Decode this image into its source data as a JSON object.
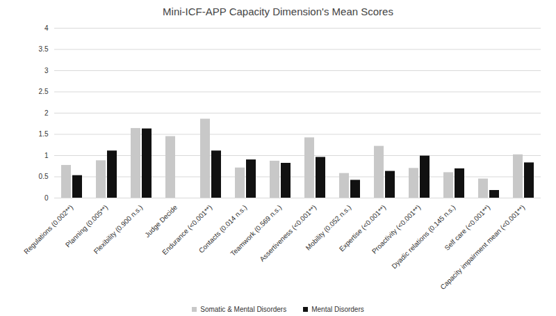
{
  "chart_data": {
    "type": "bar",
    "title": "Mini-ICF-APP Capacity Dimension's Mean Scores",
    "categories": [
      "Regulations (0.002**)",
      "Planning (0.005**)",
      "Flexibility (0.900 n.s.)",
      "Judge Decide",
      "Endurance (<0.001**)",
      "Contacts (0.014 n.s.)",
      "Teamwork (0.569 n.s.)",
      "Assertiveness (<0.001**)",
      "Mobility (0.052 n.s.)",
      "Expertise (<0.001**)",
      "Proactivity (<0.001**)",
      "Dyadic relations (0.145 n.s.)",
      "Self care (<0.001**)",
      "Capacity impairment mean (<0.001**)"
    ],
    "series": [
      {
        "name": "Somatic & Mental Disorders",
        "color": "#c8c8c8",
        "values": [
          0.77,
          0.88,
          1.64,
          1.45,
          1.86,
          0.71,
          0.87,
          1.42,
          0.58,
          1.22,
          0.7,
          0.6,
          0.45,
          1.02
        ]
      },
      {
        "name": "Mental Disorders",
        "color": "#111111",
        "values": [
          0.53,
          1.11,
          1.63,
          null,
          1.11,
          0.9,
          0.82,
          0.96,
          0.42,
          0.63,
          0.99,
          0.69,
          0.18,
          0.83
        ]
      }
    ],
    "ylim": [
      0,
      4
    ],
    "yticks": [
      0,
      0.5,
      1,
      1.5,
      2,
      2.5,
      3,
      3.5,
      4
    ],
    "grid": true,
    "legend": "bottom"
  }
}
